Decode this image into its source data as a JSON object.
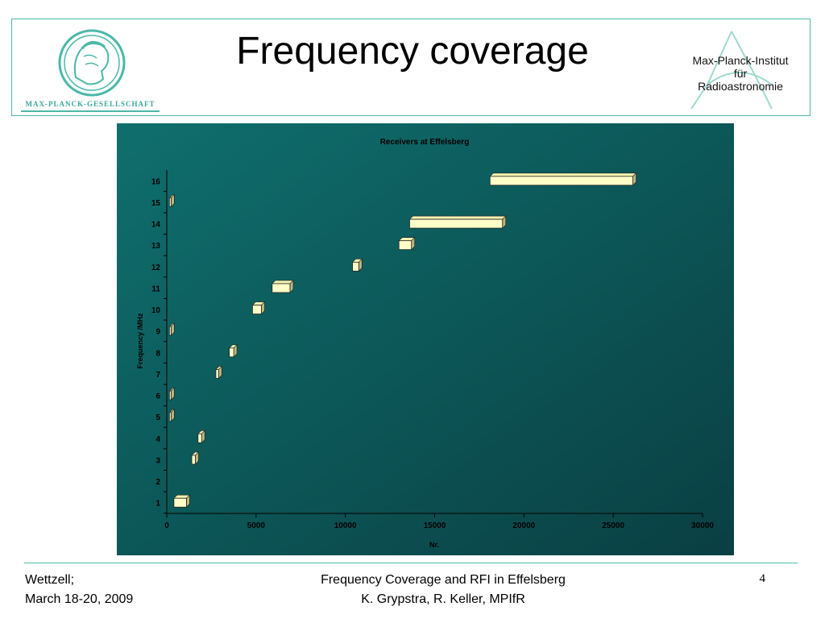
{
  "header": {
    "title": "Frequency coverage",
    "left_logo_caption": "MAX-PLANCK-GESELLSCHAFT",
    "right_logo_lines": [
      "Max-Planck-Institut",
      "für",
      "Radioastronomie"
    ]
  },
  "chart_data": {
    "type": "bar",
    "orientation": "horizontal",
    "title": "Receivers at Effelsberg",
    "xlabel": "Nr.",
    "ylabel": "Frequency /MHz",
    "xlim": [
      0,
      30000
    ],
    "ylim": [
      0.5,
      16.5
    ],
    "xticks": [
      0,
      5000,
      10000,
      15000,
      20000,
      25000,
      30000
    ],
    "yticks": [
      1,
      2,
      3,
      4,
      5,
      6,
      7,
      8,
      9,
      10,
      11,
      12,
      13,
      14,
      15,
      16
    ],
    "grid": false,
    "legend": "none",
    "bar_color": "#ffffc8",
    "background_colors": [
      "#0f6f6d",
      "#0a3f43"
    ],
    "ranges": [
      {
        "nr": 1,
        "start": 400,
        "end": 1100
      },
      {
        "nr": 2,
        "start": 0,
        "end": 0
      },
      {
        "nr": 3,
        "start": 1400,
        "end": 1600
      },
      {
        "nr": 4,
        "start": 1750,
        "end": 1950
      },
      {
        "nr": 5,
        "start": 150,
        "end": 220
      },
      {
        "nr": 6,
        "start": 150,
        "end": 220
      },
      {
        "nr": 7,
        "start": 2750,
        "end": 2900
      },
      {
        "nr": 8,
        "start": 3500,
        "end": 3750
      },
      {
        "nr": 9,
        "start": 150,
        "end": 220
      },
      {
        "nr": 10,
        "start": 4800,
        "end": 5300
      },
      {
        "nr": 11,
        "start": 5900,
        "end": 6900
      },
      {
        "nr": 12,
        "start": 10400,
        "end": 10750
      },
      {
        "nr": 13,
        "start": 13000,
        "end": 13700
      },
      {
        "nr": 14,
        "start": 13600,
        "end": 18800
      },
      {
        "nr": 15,
        "start": 150,
        "end": 220
      },
      {
        "nr": 16,
        "start": 18100,
        "end": 26100
      }
    ]
  },
  "footer": {
    "left_lines": [
      "Wettzell;",
      "March 18-20, 2009"
    ],
    "center_lines": [
      "Frequency Coverage and RFI in Effelsberg",
      "K. Grypstra, R. Keller, MPIfR"
    ],
    "page_number": "4"
  }
}
